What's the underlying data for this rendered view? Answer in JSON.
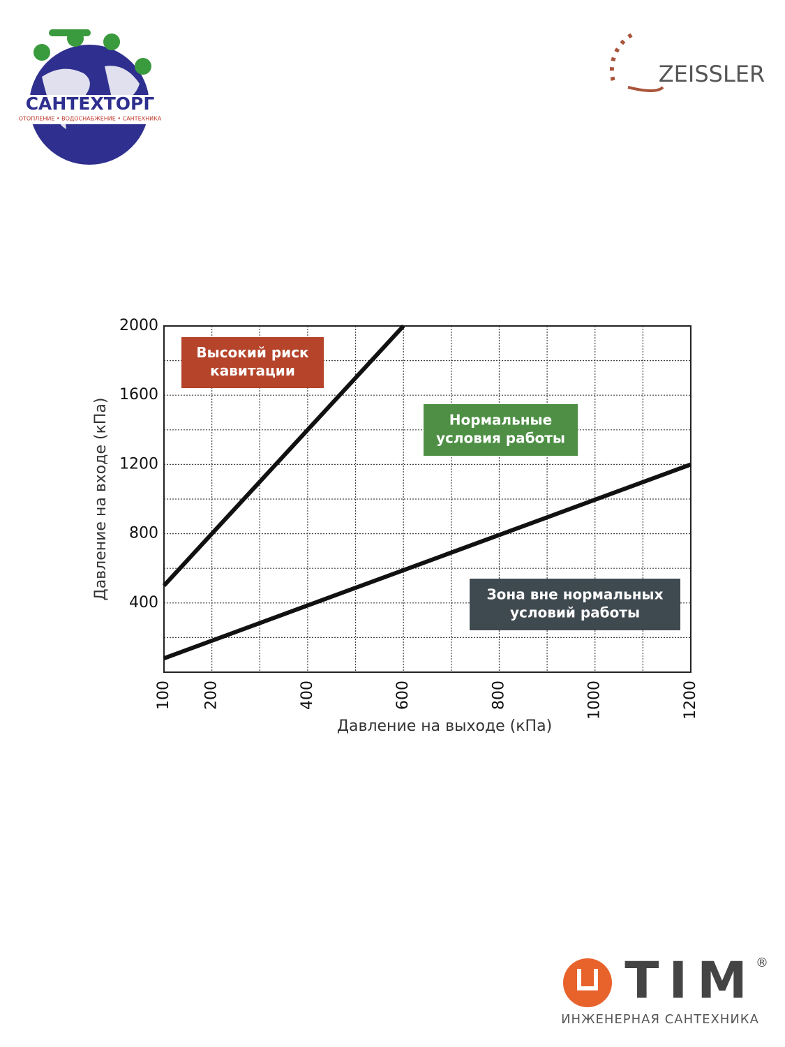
{
  "logos": {
    "santehtorg": {
      "name": "САНТЕХТОРГ",
      "tagline": "ОТОПЛЕНИЕ • ВОДОСНАБЖЕНИЕ • САНТЕХНИКА"
    },
    "zeissler": {
      "name": "ZEISSLER"
    },
    "tim": {
      "name": "TIM",
      "mark": "®",
      "tagline": "ИНЖЕНЕРНАЯ САНТЕХНИКА"
    }
  },
  "chart_data": {
    "type": "line",
    "x_label": "Давление на выходе (кПа)",
    "y_label": "Давление на входе (кПа)",
    "xlim": [
      100,
      1200
    ],
    "ylim": [
      0,
      2000
    ],
    "xticks": [
      100,
      200,
      400,
      600,
      800,
      1000,
      1200
    ],
    "yticks": [
      400,
      800,
      1200,
      1600,
      2000
    ],
    "xgrid": [
      100,
      200,
      300,
      400,
      500,
      600,
      700,
      800,
      900,
      1000,
      1100,
      1200
    ],
    "ygrid": [
      200,
      400,
      600,
      800,
      1000,
      1200,
      1400,
      1600,
      1800,
      2000
    ],
    "grid": true,
    "series": [
      {
        "color": "#111111",
        "x": [
          100,
          600
        ],
        "values": [
          500,
          2000
        ]
      },
      {
        "color": "#111111",
        "x": [
          100,
          1200
        ],
        "values": [
          80,
          1200
        ]
      }
    ],
    "annotations": [
      {
        "text": [
          "Высокий    риск",
          "кавитации"
        ],
        "color": "#b5442b"
      },
      {
        "text": [
          "Нормальные",
          "условия работы"
        ],
        "color": "#4e8f45"
      },
      {
        "text": [
          "Зона вне нормальных",
          "условий работы"
        ],
        "color": "#3f4a50"
      }
    ]
  }
}
